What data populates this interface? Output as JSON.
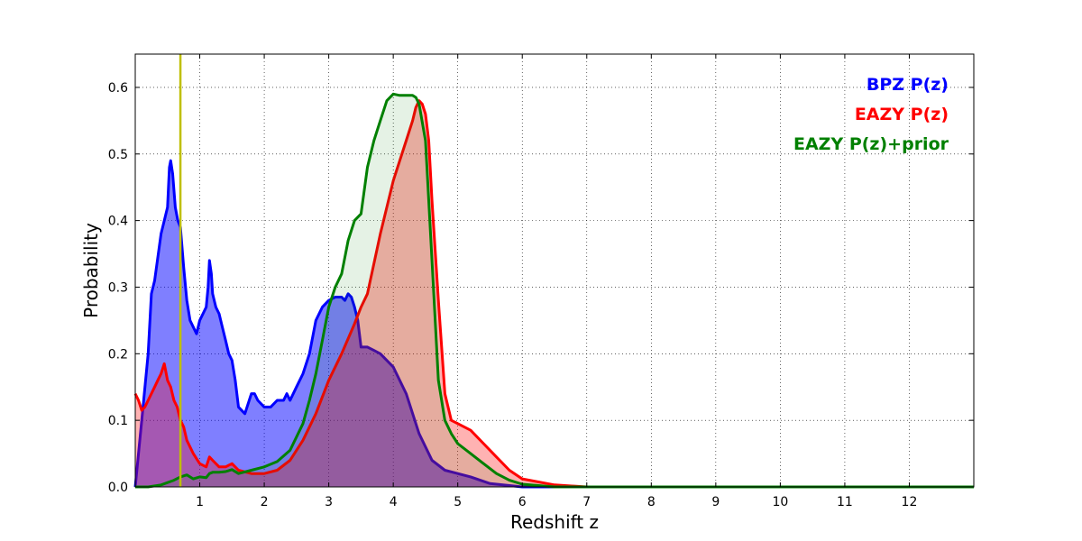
{
  "chart_data": {
    "type": "area",
    "xlabel": "Redshift z",
    "ylabel": "Probability",
    "xlim": [
      0,
      13
    ],
    "ylim": [
      0,
      0.65
    ],
    "xticks": [
      1,
      2,
      3,
      4,
      5,
      6,
      7,
      8,
      9,
      10,
      11,
      12
    ],
    "yticks": [
      0.0,
      0.1,
      0.2,
      0.3,
      0.4,
      0.5,
      0.6
    ],
    "ytick_labels": [
      "0.0",
      "0.1",
      "0.2",
      "0.3",
      "0.4",
      "0.5",
      "0.6"
    ],
    "grid": true,
    "legend_position": "top-right",
    "reference_line": {
      "x": 0.7,
      "color": "#bfbf00"
    },
    "series": [
      {
        "name": "BPZ P(z)",
        "color": "#0000ff",
        "fill_opacity": 0.5,
        "x": [
          0,
          0.1,
          0.2,
          0.25,
          0.3,
          0.4,
          0.45,
          0.5,
          0.53,
          0.55,
          0.58,
          0.62,
          0.66,
          0.7,
          0.75,
          0.8,
          0.85,
          0.9,
          0.95,
          1.0,
          1.05,
          1.1,
          1.13,
          1.15,
          1.18,
          1.2,
          1.25,
          1.3,
          1.35,
          1.4,
          1.45,
          1.5,
          1.55,
          1.6,
          1.7,
          1.8,
          1.85,
          1.9,
          2.0,
          2.1,
          2.2,
          2.3,
          2.35,
          2.4,
          2.5,
          2.6,
          2.7,
          2.8,
          2.9,
          3.0,
          3.1,
          3.2,
          3.25,
          3.3,
          3.35,
          3.4,
          3.45,
          3.5,
          3.6,
          3.7,
          3.8,
          3.9,
          4.0,
          4.2,
          4.4,
          4.6,
          4.8,
          5.0,
          5.2,
          5.5,
          6.0,
          6.5,
          13.0
        ],
        "y": [
          0.0,
          0.1,
          0.2,
          0.29,
          0.31,
          0.38,
          0.4,
          0.42,
          0.48,
          0.49,
          0.47,
          0.42,
          0.4,
          0.39,
          0.33,
          0.28,
          0.25,
          0.24,
          0.23,
          0.25,
          0.26,
          0.27,
          0.3,
          0.34,
          0.32,
          0.29,
          0.27,
          0.26,
          0.24,
          0.22,
          0.2,
          0.19,
          0.16,
          0.12,
          0.11,
          0.14,
          0.14,
          0.13,
          0.12,
          0.12,
          0.13,
          0.13,
          0.14,
          0.13,
          0.15,
          0.17,
          0.2,
          0.25,
          0.27,
          0.28,
          0.285,
          0.285,
          0.28,
          0.29,
          0.285,
          0.27,
          0.25,
          0.21,
          0.21,
          0.205,
          0.2,
          0.19,
          0.18,
          0.14,
          0.08,
          0.04,
          0.025,
          0.02,
          0.015,
          0.005,
          0.0,
          0.0,
          0.0
        ]
      },
      {
        "name": "EAZY P(z)",
        "color": "#ff0000",
        "fill_opacity": 0.3,
        "x": [
          0,
          0.05,
          0.1,
          0.15,
          0.2,
          0.3,
          0.35,
          0.4,
          0.45,
          0.5,
          0.55,
          0.6,
          0.65,
          0.7,
          0.75,
          0.8,
          0.9,
          1.0,
          1.1,
          1.15,
          1.2,
          1.3,
          1.4,
          1.5,
          1.6,
          1.8,
          2.0,
          2.2,
          2.4,
          2.6,
          2.8,
          3.0,
          3.2,
          3.4,
          3.5,
          3.6,
          3.8,
          4.0,
          4.2,
          4.3,
          4.35,
          4.4,
          4.45,
          4.5,
          4.55,
          4.6,
          4.7,
          4.8,
          4.9,
          5.0,
          5.2,
          5.4,
          5.6,
          5.8,
          6.0,
          6.5,
          7.0,
          8.0,
          13.0
        ],
        "y": [
          0.14,
          0.13,
          0.115,
          0.12,
          0.13,
          0.15,
          0.16,
          0.17,
          0.185,
          0.16,
          0.15,
          0.13,
          0.12,
          0.1,
          0.09,
          0.07,
          0.05,
          0.035,
          0.03,
          0.045,
          0.04,
          0.03,
          0.03,
          0.035,
          0.025,
          0.02,
          0.02,
          0.025,
          0.04,
          0.07,
          0.11,
          0.16,
          0.2,
          0.245,
          0.27,
          0.29,
          0.38,
          0.46,
          0.52,
          0.55,
          0.57,
          0.58,
          0.575,
          0.56,
          0.52,
          0.43,
          0.28,
          0.14,
          0.1,
          0.095,
          0.085,
          0.065,
          0.045,
          0.025,
          0.012,
          0.003,
          0.0,
          0.0,
          0.0
        ]
      },
      {
        "name": "EAZY P(z)+prior",
        "color": "#008000",
        "fill_opacity": 0.1,
        "x": [
          0,
          0.2,
          0.4,
          0.6,
          0.7,
          0.8,
          0.9,
          1.0,
          1.1,
          1.15,
          1.2,
          1.3,
          1.4,
          1.5,
          1.6,
          1.8,
          2.0,
          2.2,
          2.4,
          2.6,
          2.7,
          2.8,
          2.9,
          3.0,
          3.1,
          3.2,
          3.3,
          3.4,
          3.5,
          3.6,
          3.7,
          3.8,
          3.9,
          4.0,
          4.1,
          4.3,
          4.35,
          4.4,
          4.5,
          4.6,
          4.7,
          4.8,
          4.9,
          5.0,
          5.2,
          5.4,
          5.6,
          5.8,
          6.0,
          6.5,
          7.0,
          13.0
        ],
        "y": [
          0.0,
          0.0,
          0.003,
          0.01,
          0.015,
          0.018,
          0.012,
          0.015,
          0.014,
          0.02,
          0.022,
          0.022,
          0.023,
          0.026,
          0.02,
          0.025,
          0.03,
          0.038,
          0.055,
          0.095,
          0.13,
          0.17,
          0.22,
          0.27,
          0.3,
          0.32,
          0.37,
          0.4,
          0.41,
          0.48,
          0.52,
          0.55,
          0.58,
          0.59,
          0.588,
          0.588,
          0.585,
          0.575,
          0.52,
          0.34,
          0.16,
          0.1,
          0.08,
          0.065,
          0.05,
          0.035,
          0.02,
          0.01,
          0.004,
          0.0,
          0.0,
          0.0
        ]
      }
    ]
  }
}
